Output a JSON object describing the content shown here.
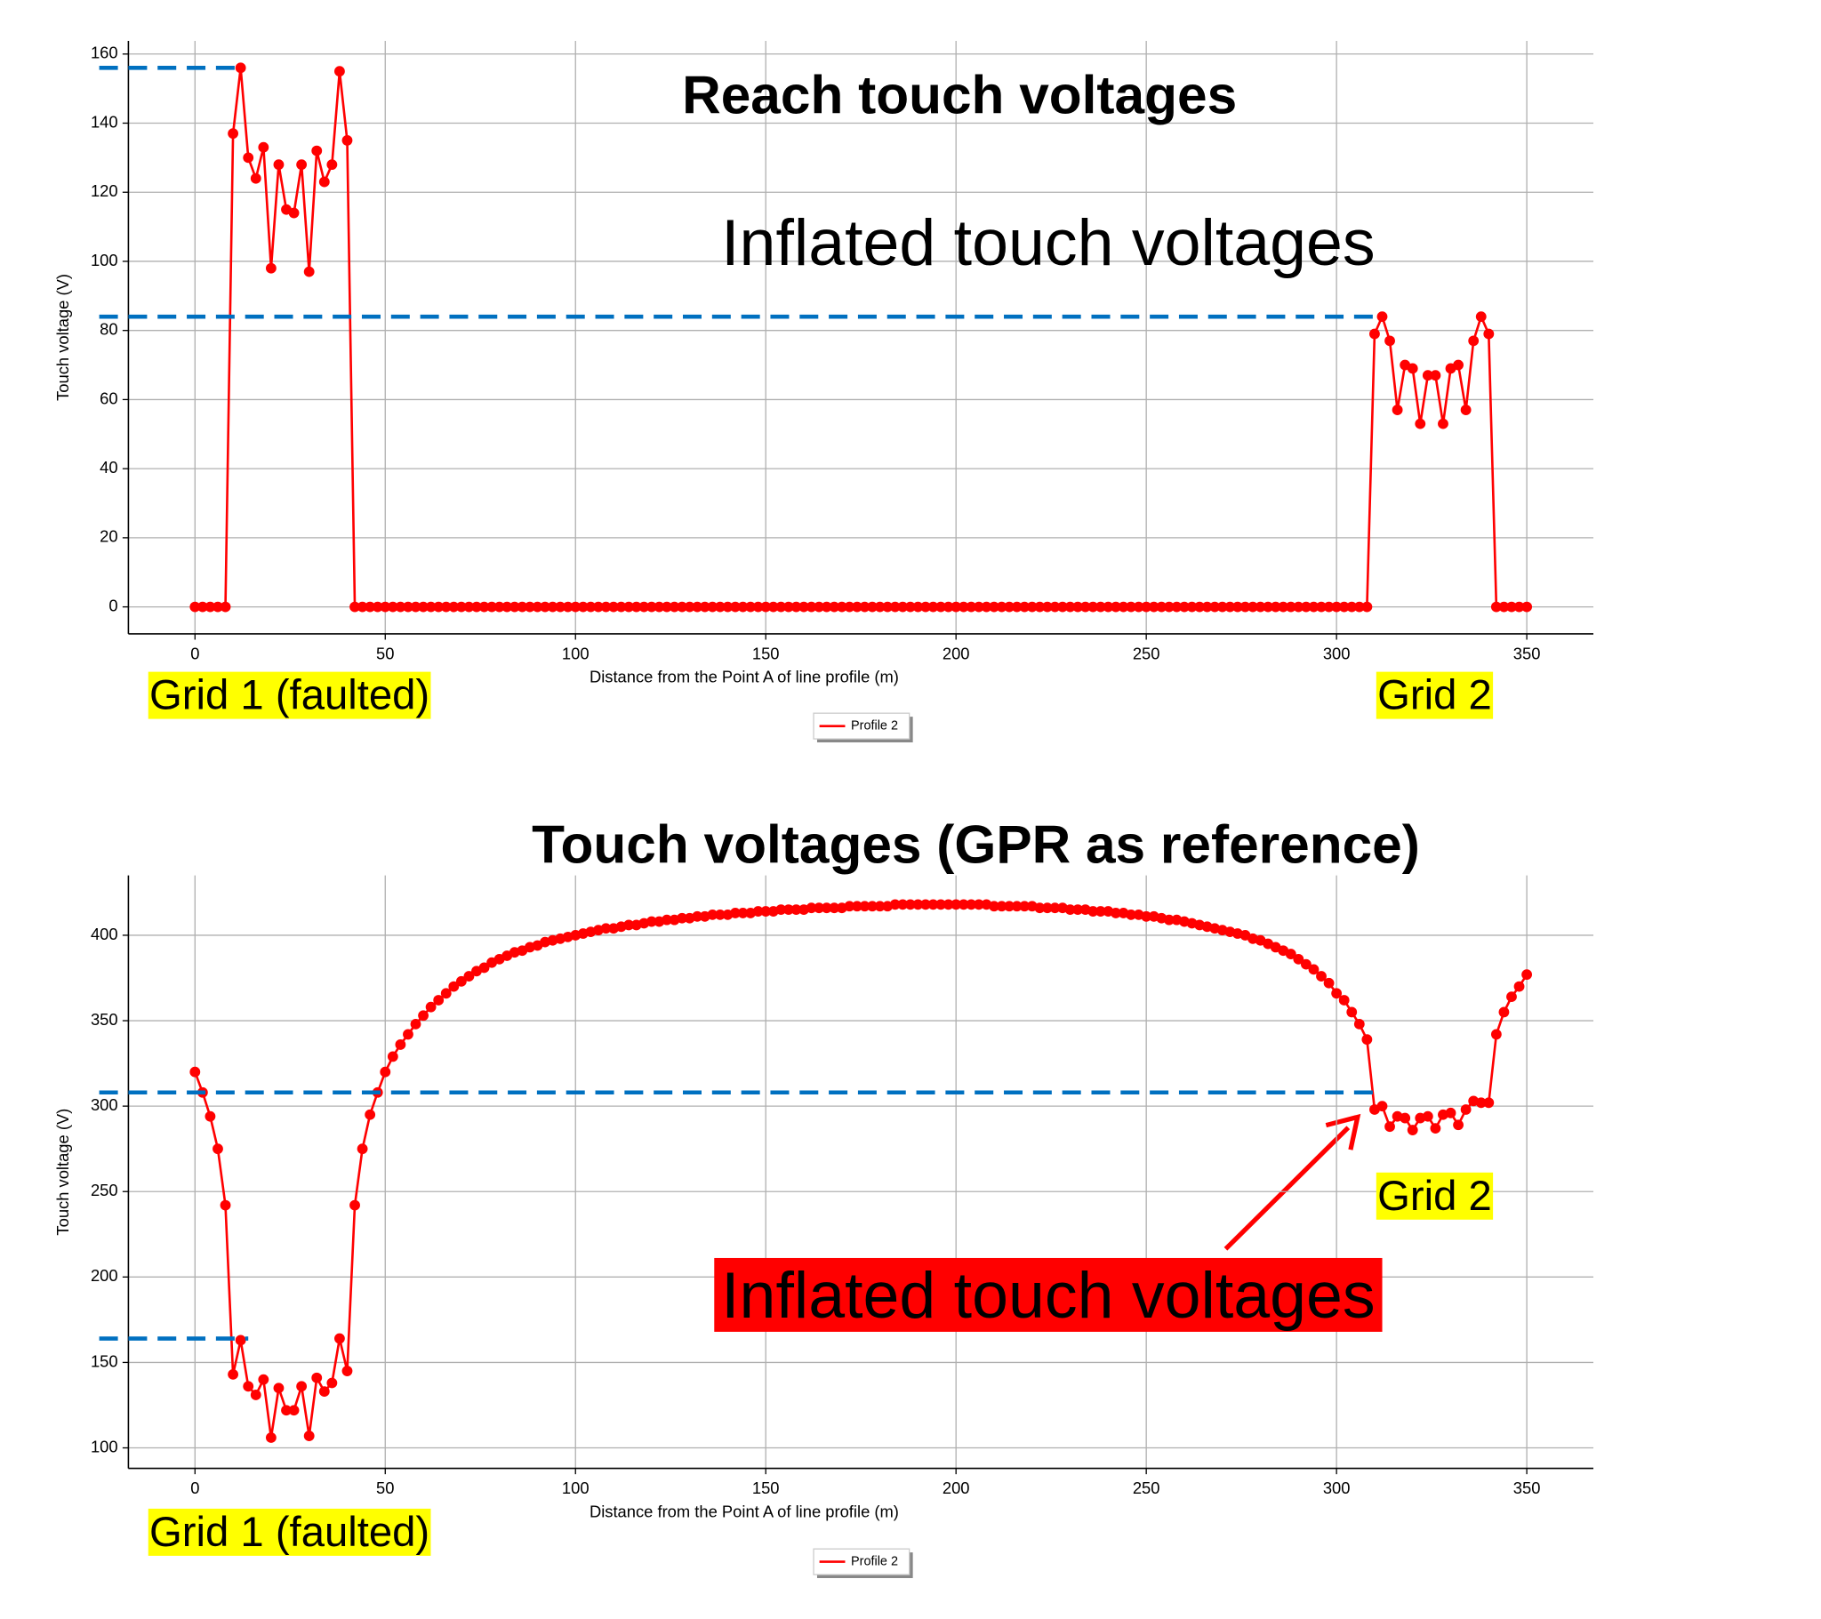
{
  "chart_data": [
    {
      "type": "line",
      "title": "Reach touch voltages",
      "xlabel": "Distance from the Point A of line profile (m)",
      "ylabel": "Touch voltage (V)",
      "x": [
        0,
        2,
        4,
        6,
        8,
        10,
        12,
        14,
        16,
        18,
        20,
        22,
        24,
        26,
        28,
        30,
        32,
        34,
        36,
        38,
        40,
        42,
        44,
        46,
        48,
        50,
        52,
        54,
        56,
        58,
        60,
        62,
        64,
        66,
        68,
        70,
        72,
        74,
        76,
        78,
        80,
        82,
        84,
        86,
        88,
        90,
        92,
        94,
        96,
        98,
        100,
        102,
        104,
        106,
        108,
        110,
        112,
        114,
        116,
        118,
        120,
        122,
        124,
        126,
        128,
        130,
        132,
        134,
        136,
        138,
        140,
        142,
        144,
        146,
        148,
        150,
        152,
        154,
        156,
        158,
        160,
        162,
        164,
        166,
        168,
        170,
        172,
        174,
        176,
        178,
        180,
        182,
        184,
        186,
        188,
        190,
        192,
        194,
        196,
        198,
        200,
        202,
        204,
        206,
        208,
        210,
        212,
        214,
        216,
        218,
        220,
        222,
        224,
        226,
        228,
        230,
        232,
        234,
        236,
        238,
        240,
        242,
        244,
        246,
        248,
        250,
        252,
        254,
        256,
        258,
        260,
        262,
        264,
        266,
        268,
        270,
        272,
        274,
        276,
        278,
        280,
        282,
        284,
        286,
        288,
        290,
        292,
        294,
        296,
        298,
        300,
        302,
        304,
        306,
        308,
        310,
        312,
        314,
        316,
        318,
        320,
        322,
        324,
        326,
        328,
        330,
        332,
        334,
        336,
        338,
        340,
        342,
        344,
        346,
        348,
        350
      ],
      "series": [
        {
          "name": "Profile 2",
          "color": "#ff0000",
          "values": [
            0,
            0,
            0,
            0,
            0,
            137,
            156,
            130,
            124,
            133,
            98,
            128,
            115,
            114,
            128,
            97,
            132,
            123,
            128,
            155,
            135,
            0,
            0,
            0,
            0,
            0,
            0,
            0,
            0,
            0,
            0,
            0,
            0,
            0,
            0,
            0,
            0,
            0,
            0,
            0,
            0,
            0,
            0,
            0,
            0,
            0,
            0,
            0,
            0,
            0,
            0,
            0,
            0,
            0,
            0,
            0,
            0,
            0,
            0,
            0,
            0,
            0,
            0,
            0,
            0,
            0,
            0,
            0,
            0,
            0,
            0,
            0,
            0,
            0,
            0,
            0,
            0,
            0,
            0,
            0,
            0,
            0,
            0,
            0,
            0,
            0,
            0,
            0,
            0,
            0,
            0,
            0,
            0,
            0,
            0,
            0,
            0,
            0,
            0,
            0,
            0,
            0,
            0,
            0,
            0,
            0,
            0,
            0,
            0,
            0,
            0,
            0,
            0,
            0,
            0,
            0,
            0,
            0,
            0,
            0,
            0,
            0,
            0,
            0,
            0,
            0,
            0,
            0,
            0,
            0,
            0,
            0,
            0,
            0,
            0,
            0,
            0,
            0,
            0,
            0,
            0,
            0,
            0,
            0,
            0,
            0,
            0,
            0,
            0,
            0,
            0,
            0,
            0,
            0,
            0,
            79,
            84,
            77,
            57,
            70,
            69,
            53,
            67,
            67,
            53,
            69,
            70,
            57,
            77,
            84,
            79,
            0,
            0,
            0,
            0,
            0
          ]
        }
      ],
      "xlim": [
        -17.5,
        367.5
      ],
      "xticks": [
        0,
        50,
        100,
        150,
        200,
        250,
        300,
        350
      ],
      "ylim": [
        -7.8,
        163.8
      ],
      "yticks": [
        0,
        20,
        40,
        60,
        80,
        100,
        120,
        140,
        160
      ],
      "grid": true,
      "reference_lines": [
        {
          "y": 156,
          "x_end": 12,
          "color": "#0070c0"
        },
        {
          "y": 84,
          "x_end": 312,
          "color": "#0070c0"
        }
      ],
      "annotations": [
        "Inflated touch voltages",
        "Grid 1 (faulted)",
        "Grid 2"
      ]
    },
    {
      "type": "line",
      "title": "Touch voltages (GPR as reference)",
      "xlabel": "Distance from the Point A of line profile (m)",
      "ylabel": "Touch voltage (V)",
      "x": [
        0,
        2,
        4,
        6,
        8,
        10,
        12,
        14,
        16,
        18,
        20,
        22,
        24,
        26,
        28,
        30,
        32,
        34,
        36,
        38,
        40,
        42,
        44,
        46,
        48,
        50,
        52,
        54,
        56,
        58,
        60,
        62,
        64,
        66,
        68,
        70,
        72,
        74,
        76,
        78,
        80,
        82,
        84,
        86,
        88,
        90,
        92,
        94,
        96,
        98,
        100,
        102,
        104,
        106,
        108,
        110,
        112,
        114,
        116,
        118,
        120,
        122,
        124,
        126,
        128,
        130,
        132,
        134,
        136,
        138,
        140,
        142,
        144,
        146,
        148,
        150,
        152,
        154,
        156,
        158,
        160,
        162,
        164,
        166,
        168,
        170,
        172,
        174,
        176,
        178,
        180,
        182,
        184,
        186,
        188,
        190,
        192,
        194,
        196,
        198,
        200,
        202,
        204,
        206,
        208,
        210,
        212,
        214,
        216,
        218,
        220,
        222,
        224,
        226,
        228,
        230,
        232,
        234,
        236,
        238,
        240,
        242,
        244,
        246,
        248,
        250,
        252,
        254,
        256,
        258,
        260,
        262,
        264,
        266,
        268,
        270,
        272,
        274,
        276,
        278,
        280,
        282,
        284,
        286,
        288,
        290,
        292,
        294,
        296,
        298,
        300,
        302,
        304,
        306,
        308,
        310,
        312,
        314,
        316,
        318,
        320,
        322,
        324,
        326,
        328,
        330,
        332,
        334,
        336,
        338,
        340,
        342,
        344,
        346,
        348,
        350
      ],
      "series": [
        {
          "name": "Profile 2",
          "color": "#ff0000",
          "values": [
            320,
            308,
            294,
            275,
            242,
            143,
            163,
            136,
            131,
            140,
            106,
            135,
            122,
            122,
            136,
            107,
            141,
            133,
            138,
            164,
            145,
            242,
            275,
            295,
            308,
            320,
            329,
            336,
            342,
            348,
            353,
            358,
            362,
            366,
            370,
            373,
            376,
            379,
            381,
            384,
            386,
            388,
            390,
            391,
            393,
            394,
            396,
            397,
            398,
            399,
            400,
            401,
            402,
            403,
            404,
            404,
            405,
            406,
            406,
            407,
            408,
            408,
            409,
            409,
            410,
            410,
            411,
            411,
            412,
            412,
            412,
            413,
            413,
            413,
            414,
            414,
            414,
            415,
            415,
            415,
            415,
            416,
            416,
            416,
            416,
            416,
            417,
            417,
            417,
            417,
            417,
            417,
            418,
            418,
            418,
            418,
            418,
            418,
            418,
            418,
            418,
            418,
            418,
            418,
            418,
            417,
            417,
            417,
            417,
            417,
            417,
            416,
            416,
            416,
            416,
            415,
            415,
            415,
            414,
            414,
            414,
            413,
            413,
            412,
            412,
            411,
            411,
            410,
            409,
            409,
            408,
            407,
            406,
            405,
            404,
            403,
            402,
            401,
            400,
            398,
            397,
            395,
            393,
            391,
            389,
            386,
            383,
            380,
            376,
            372,
            366,
            362,
            355,
            348,
            339,
            298,
            300,
            288,
            294,
            293,
            286,
            293,
            294,
            287,
            295,
            296,
            289,
            298,
            303,
            302,
            302,
            342,
            355,
            364,
            370,
            377
          ]
        }
      ],
      "xlim": [
        -17.5,
        367.5
      ],
      "xticks": [
        0,
        50,
        100,
        150,
        200,
        250,
        300,
        350
      ],
      "ylim": [
        88,
        435
      ],
      "yticks": [
        100,
        150,
        200,
        250,
        300,
        350,
        400
      ],
      "grid": true,
      "reference_lines": [
        {
          "y": 308,
          "x_end": 310,
          "color": "#0070c0"
        },
        {
          "y": 164,
          "x_end": 14,
          "color": "#0070c0"
        }
      ],
      "annotations": [
        "Inflated touch voltages",
        "Grid 2",
        "Grid 1 (faulted)"
      ]
    }
  ]
}
